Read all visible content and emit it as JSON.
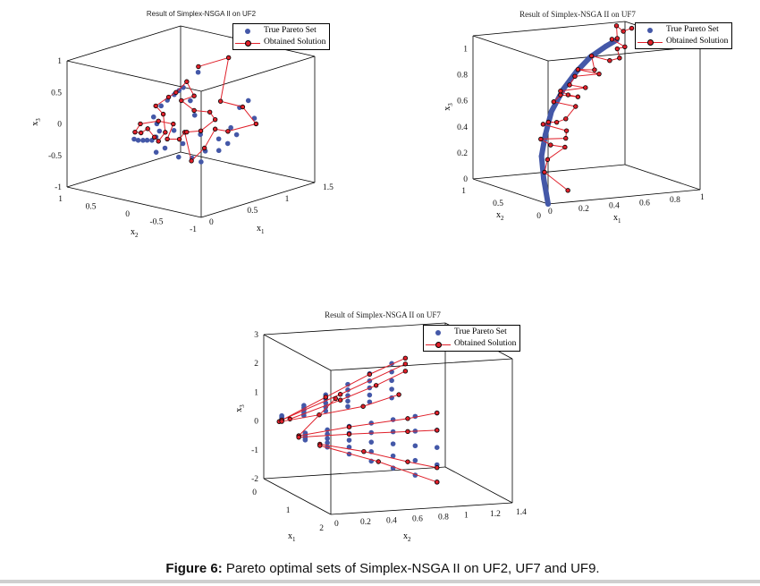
{
  "caption": {
    "label": "Figure 6:",
    "text": " Pareto optimal sets of Simplex-NSGA II on UF2, UF7 and UF9."
  },
  "colors": {
    "true_set": "#4458a8",
    "solution_line": "#e0202a",
    "solution_marker": "#e0202a"
  },
  "chart_data": [
    {
      "type": "scatter3d",
      "title": "Result of Simplex-NSGA II on UF2",
      "legend": [
        "True Pareto Set",
        "Obtained Solution"
      ],
      "legend_position": "top-right",
      "axis_labels": {
        "x1": "x",
        "x1_sub": "1",
        "x2": "x",
        "x2_sub": "2",
        "x3": "x",
        "x3_sub": "3"
      },
      "xlim": [
        0,
        1.5
      ],
      "ylim": [
        -1,
        1
      ],
      "zlim": [
        -1,
        1
      ],
      "x1_ticks": [
        0,
        0.5,
        1,
        1.5
      ],
      "x2_ticks": [
        -1,
        -0.5,
        0,
        0.5,
        1
      ],
      "x3_ticks": [
        -1,
        -0.5,
        0,
        0.5,
        1
      ],
      "true_set": [
        [
          0,
          0,
          0
        ],
        [
          0.02,
          -0.11,
          0
        ],
        [
          0.04,
          -0.22,
          0.02
        ],
        [
          0.06,
          -0.31,
          0.18
        ],
        [
          0.08,
          -0.2,
          0.37
        ],
        [
          0.1,
          -0.29,
          0.56
        ],
        [
          0.14,
          -0.44,
          0.76
        ],
        [
          0.18,
          -0.53,
          0.88
        ],
        [
          0.22,
          -0.59,
          0.67
        ],
        [
          0.26,
          -0.61,
          0.43
        ],
        [
          0.3,
          -0.65,
          0.12
        ],
        [
          0.34,
          -0.48,
          -0.31
        ],
        [
          0.4,
          -0.61,
          -0.19
        ],
        [
          0.48,
          -0.72,
          0
        ],
        [
          0.56,
          -0.81,
          0.17
        ],
        [
          0.64,
          -0.85,
          0.47
        ],
        [
          0.72,
          -0.89,
          0.56
        ],
        [
          0.8,
          -0.89,
          0.25
        ],
        [
          0.84,
          -0.58,
          -0.1
        ],
        [
          0.88,
          -0.27,
          -0.44
        ],
        [
          0.92,
          0.04,
          -0.71
        ],
        [
          0.96,
          0.42,
          -0.74
        ],
        [
          1.0,
          0.8,
          -0.77
        ],
        [
          0.5,
          -0.39,
          0.97
        ],
        [
          0.5,
          -0.03,
          -0.04
        ],
        [
          0.6,
          -0.05,
          -0.28
        ],
        [
          0.7,
          0.33,
          -0.48
        ],
        [
          0.9,
          -0.38,
          -0.31
        ],
        [
          0.01,
          -0.05,
          -0.01
        ],
        [
          0.03,
          -0.16,
          0.01
        ],
        [
          0.05,
          -0.27,
          0.08
        ],
        [
          0.07,
          -0.26,
          0.28
        ],
        [
          0.12,
          -0.36,
          0.66
        ],
        [
          0.16,
          -0.49,
          0.83
        ]
      ],
      "solution": [
        [
          1,
          0.17,
          0.74
        ],
        [
          1,
          -0.28,
          0.99
        ],
        [
          1,
          -0.16,
          0.27
        ],
        [
          1,
          -0.49,
          0.26
        ],
        [
          1,
          -0.69,
          0.04
        ],
        [
          1,
          -0.27,
          -0.18
        ],
        [
          1,
          -0.08,
          -0.19
        ],
        [
          1,
          0.08,
          -0.53
        ],
        [
          0.5,
          -0.29,
          -0.46
        ],
        [
          0.5,
          -0.19,
          -0.03
        ],
        [
          0.5,
          -0.11,
          -0.16
        ],
        [
          0.5,
          0.07,
          -0.2
        ],
        [
          0.5,
          -0.02,
          0.06
        ],
        [
          0.1,
          -0.25,
          0.31
        ],
        [
          0.1,
          0.02,
          0.2
        ],
        [
          0.1,
          0.1,
          0.05
        ],
        [
          0.1,
          0.01,
          0.06
        ],
        [
          0.1,
          -0.09,
          0.15
        ],
        [
          0.1,
          -0.19,
          0.04
        ],
        [
          0.1,
          -0.25,
          -0.01
        ],
        [
          0.5,
          0.1,
          -0.1
        ],
        [
          0.5,
          0.13,
          0.18
        ],
        [
          0.1,
          -0.21,
          0.54
        ],
        [
          0.5,
          0.05,
          0.47
        ],
        [
          0.5,
          -0.06,
          0.57
        ],
        [
          0.5,
          -0.22,
          0.78
        ],
        [
          0.5,
          -0.33,
          0.58
        ],
        [
          0.5,
          -0.14,
          0.46
        ],
        [
          0.5,
          -0.33,
          0.35
        ],
        [
          1,
          0,
          0.06
        ],
        [
          1,
          -0.08,
          -0.04
        ],
        [
          0.5,
          -0.43,
          0.05
        ],
        [
          0.5,
          -0.22,
          -0.02
        ]
      ]
    },
    {
      "type": "scatter3d",
      "title": "Result of Simplex-NSGA II on UF7",
      "legend": [
        "True Pareto Set",
        "Obtained Solution"
      ],
      "legend_position": "top-right",
      "axis_labels": {
        "x1": "x",
        "x1_sub": "1",
        "x2": "x",
        "x2_sub": "2",
        "x3": "x",
        "x3_sub": "3"
      },
      "xlim": [
        0,
        1
      ],
      "ylim": [
        0,
        1
      ],
      "zlim": [
        0,
        1.1
      ],
      "x1_ticks": [
        0,
        0.2,
        0.4,
        0.6,
        0.8,
        1
      ],
      "x2_ticks": [
        0,
        0.5,
        1
      ],
      "x3_ticks": [
        0,
        0.2,
        0.4,
        0.6,
        0.8,
        1
      ],
      "true_set": [
        [
          0,
          0,
          0
        ],
        [
          0.05,
          0.16,
          0.16
        ],
        [
          0.1,
          0.29,
          0.3
        ],
        [
          0.15,
          0.34,
          0.45
        ],
        [
          0.2,
          0.36,
          0.62
        ],
        [
          0.25,
          0.3,
          0.8
        ],
        [
          0.3,
          0.23,
          0.94
        ],
        [
          0.35,
          0.15,
          1.06
        ],
        [
          0.4,
          0.04,
          1.16
        ],
        [
          0.45,
          0,
          1.21
        ]
      ],
      "solution": [
        [
          0.15,
          0.04,
          0.08
        ],
        [
          0.09,
          0.23,
          0.19
        ],
        [
          0.12,
          0.25,
          0.28
        ],
        [
          0.2,
          0.18,
          0.38
        ],
        [
          0.16,
          0.29,
          0.38
        ],
        [
          0.12,
          0.34,
          0.42
        ],
        [
          0.22,
          0.21,
          0.44
        ],
        [
          0.22,
          0.2,
          0.5
        ],
        [
          0.14,
          0.35,
          0.53
        ],
        [
          0.16,
          0.32,
          0.55
        ],
        [
          0.2,
          0.29,
          0.55
        ],
        [
          0.24,
          0.25,
          0.58
        ],
        [
          0.28,
          0.2,
          0.68
        ],
        [
          0.2,
          0.33,
          0.7
        ],
        [
          0.24,
          0.32,
          0.75
        ],
        [
          0.3,
          0.21,
          0.75
        ],
        [
          0.26,
          0.26,
          0.76
        ],
        [
          0.24,
          0.32,
          0.78
        ],
        [
          0.32,
          0.15,
          0.83
        ],
        [
          0.26,
          0.24,
          0.84
        ],
        [
          0.3,
          0.25,
          0.9
        ],
        [
          0.38,
          0.09,
          0.94
        ],
        [
          0.3,
          0.21,
          0.96
        ],
        [
          0.36,
          0.11,
          0.97
        ],
        [
          0.36,
          0.15,
          1.07
        ],
        [
          0.42,
          0.03,
          1.05
        ],
        [
          0.47,
          0,
          1.07
        ],
        [
          0.46,
          0.01,
          1.14
        ],
        [
          0.51,
          0.01,
          1.15
        ],
        [
          0.42,
          0,
          1.22
        ],
        [
          0.46,
          0.01,
          1.22
        ],
        [
          0.45,
          0,
          1.32
        ],
        [
          0.5,
          0.01,
          1.27
        ],
        [
          0.55,
          0,
          1.29
        ]
      ]
    },
    {
      "type": "scatter3d",
      "title": "Result of Simplex-NSGA II on UF7",
      "legend": [
        "True Pareto Set",
        "Obtained Solution"
      ],
      "legend_position": "top-right",
      "axis_labels": {
        "x1": "x",
        "x1_sub": "1",
        "x2": "x",
        "x2_sub": "2",
        "x3": "x",
        "x3_sub": "3"
      },
      "xlim": [
        0,
        2
      ],
      "ylim": [
        0,
        1.4
      ],
      "zlim": [
        -2,
        3
      ],
      "x1_ticks": [
        0,
        1,
        2
      ],
      "x2_ticks": [
        0,
        0.2,
        0.4,
        0.6,
        0.8,
        1,
        1.2,
        1.4
      ],
      "x3_ticks": [
        -2,
        -1,
        0,
        1,
        2,
        3
      ],
      "true_set": [
        [
          0.15,
          0.1,
          0.11
        ],
        [
          0.15,
          0.1,
          0.14
        ],
        [
          0.15,
          0.1,
          0.18
        ],
        [
          0.15,
          0.1,
          0.21
        ],
        [
          0.15,
          0.1,
          0.25
        ],
        [
          0.23,
          0.25,
          0.26
        ],
        [
          0.23,
          0.25,
          0.35
        ],
        [
          0.23,
          0.25,
          0.44
        ],
        [
          0.23,
          0.25,
          0.53
        ],
        [
          0.23,
          0.25,
          0.61
        ],
        [
          0.3,
          0.4,
          0.42
        ],
        [
          0.3,
          0.4,
          0.56
        ],
        [
          0.3,
          0.4,
          0.7
        ],
        [
          0.3,
          0.4,
          0.84
        ],
        [
          0.3,
          0.4,
          0.98
        ],
        [
          0.38,
          0.55,
          0.58
        ],
        [
          0.38,
          0.55,
          0.77
        ],
        [
          0.38,
          0.55,
          0.96
        ],
        [
          0.38,
          0.55,
          1.16
        ],
        [
          0.38,
          0.55,
          1.35
        ],
        [
          0.45,
          0.7,
          0.74
        ],
        [
          0.45,
          0.7,
          0.98
        ],
        [
          0.45,
          0.7,
          1.23
        ],
        [
          0.45,
          0.7,
          1.47
        ],
        [
          0.45,
          0.7,
          1.72
        ],
        [
          0.53,
          0.85,
          0.89
        ],
        [
          0.53,
          0.85,
          1.19
        ],
        [
          0.53,
          0.85,
          1.49
        ],
        [
          0.53,
          0.85,
          1.79
        ],
        [
          0.53,
          0.85,
          2.08
        ],
        [
          0.85,
          0.1,
          0.08
        ],
        [
          0.85,
          0.1,
          0.02
        ],
        [
          0.85,
          0.1,
          -0.04
        ],
        [
          0.85,
          0.1,
          -0.1
        ],
        [
          0.85,
          0.1,
          -0.16
        ],
        [
          0.93,
          0.25,
          0.2
        ],
        [
          0.93,
          0.25,
          0.05
        ],
        [
          0.93,
          0.25,
          -0.1
        ],
        [
          0.93,
          0.25,
          -0.25
        ],
        [
          0.93,
          0.25,
          -0.4
        ],
        [
          1.0,
          0.4,
          0.32
        ],
        [
          1.0,
          0.4,
          0.08
        ],
        [
          1.0,
          0.4,
          -0.16
        ],
        [
          1.0,
          0.4,
          -0.4
        ],
        [
          1.0,
          0.4,
          -0.64
        ],
        [
          1.08,
          0.55,
          0.44
        ],
        [
          1.08,
          0.55,
          0.11
        ],
        [
          1.08,
          0.55,
          -0.22
        ],
        [
          1.08,
          0.55,
          -0.55
        ],
        [
          1.08,
          0.55,
          -0.88
        ],
        [
          1.15,
          0.7,
          0.56
        ],
        [
          1.15,
          0.7,
          0.14
        ],
        [
          1.15,
          0.7,
          -0.28
        ],
        [
          1.15,
          0.7,
          -0.7
        ],
        [
          1.15,
          0.7,
          -1.12
        ],
        [
          1.23,
          0.85,
          0.68
        ],
        [
          1.23,
          0.85,
          0.17
        ],
        [
          1.23,
          0.85,
          -0.34
        ],
        [
          1.23,
          0.85,
          -0.85
        ],
        [
          1.23,
          0.85,
          -1.36
        ],
        [
          1.3,
          1.0,
          0.8
        ],
        [
          1.3,
          1.0,
          0.2
        ],
        [
          1.3,
          1.0,
          -0.4
        ],
        [
          1.3,
          1.0,
          -1.0
        ],
        [
          1.3,
          1.0,
          -1.6
        ]
      ],
      "solution_lines": [
        [
          [
            0.15,
            0.08,
            0.05
          ],
          [
            0.3,
            0.4,
            0.9
          ],
          [
            0.45,
            0.7,
            1.7
          ],
          [
            0.55,
            0.95,
            2.25
          ]
        ],
        [
          [
            0.15,
            0.1,
            0.1
          ],
          [
            0.35,
            0.5,
            1.0
          ],
          [
            0.55,
            0.95,
            2.05
          ]
        ],
        [
          [
            0.2,
            0.15,
            0.15
          ],
          [
            0.35,
            0.5,
            0.8
          ],
          [
            0.45,
            0.75,
            1.3
          ],
          [
            0.55,
            0.95,
            1.8
          ]
        ],
        [
          [
            0.15,
            0.1,
            0.05
          ],
          [
            0.3,
            0.35,
            0.3
          ],
          [
            0.45,
            0.65,
            0.6
          ],
          [
            0.55,
            0.9,
            1.0
          ]
        ],
        [
          [
            0.85,
            0.05,
            0.0
          ],
          [
            0.4,
            0.45,
            0.9
          ]
        ],
        [
          [
            0.85,
            0.05,
            0.0
          ],
          [
            1.0,
            0.4,
            0.3
          ],
          [
            1.2,
            0.8,
            0.6
          ],
          [
            1.3,
            1.0,
            0.8
          ]
        ],
        [
          [
            0.85,
            0.05,
            -0.05
          ],
          [
            1.0,
            0.4,
            0.05
          ],
          [
            1.2,
            0.8,
            0.15
          ],
          [
            1.3,
            1.0,
            0.2
          ]
        ],
        [
          [
            0.9,
            0.2,
            -0.3
          ],
          [
            1.05,
            0.5,
            -0.55
          ],
          [
            1.2,
            0.8,
            -0.9
          ],
          [
            1.3,
            1.0,
            -1.1
          ]
        ],
        [
          [
            0.9,
            0.2,
            -0.35
          ],
          [
            1.1,
            0.6,
            -0.9
          ],
          [
            1.3,
            1.0,
            -1.6
          ]
        ]
      ]
    }
  ]
}
